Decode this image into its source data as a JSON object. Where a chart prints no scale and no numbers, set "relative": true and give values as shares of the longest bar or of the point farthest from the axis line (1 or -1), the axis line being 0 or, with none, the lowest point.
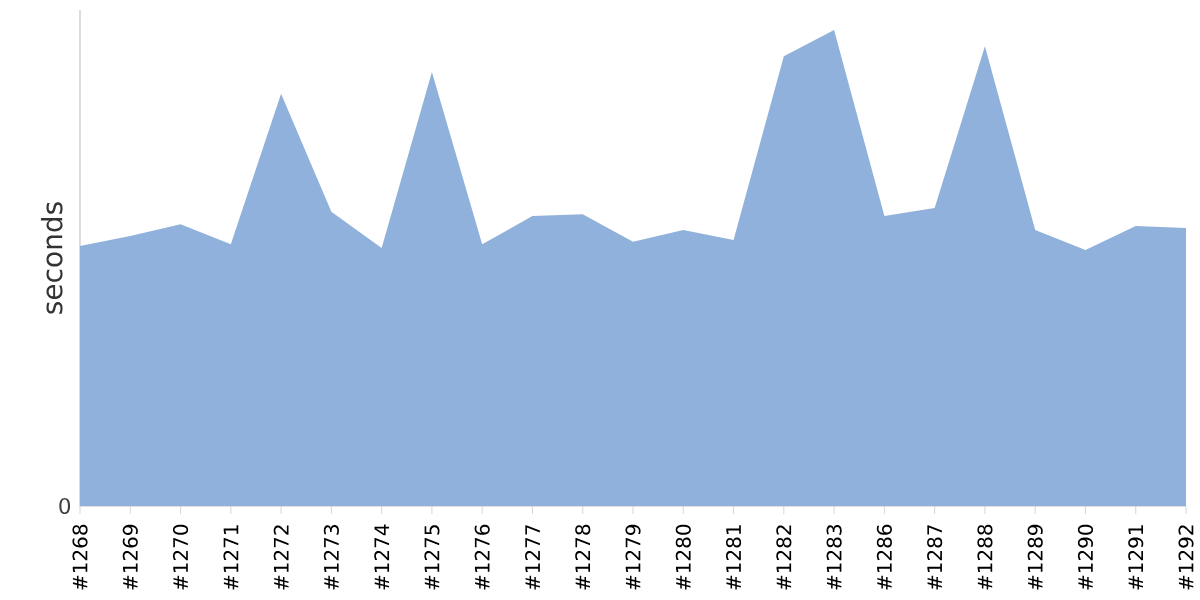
{
  "chart_data": {
    "type": "area",
    "ylabel": "seconds",
    "relative": true,
    "annotations": [
      "0"
    ],
    "categories": [
      "#1268",
      "#1269",
      "#1270",
      "#1271",
      "#1272",
      "#1273",
      "#1274",
      "#1275",
      "#1276",
      "#1277",
      "#1278",
      "#1279",
      "#1280",
      "#1281",
      "#1282",
      "#1283",
      "#1286",
      "#1287",
      "#1288",
      "#1289",
      "#1290",
      "#1291",
      "#1292"
    ],
    "series": [
      {
        "color": "#8fb1db",
        "values": [
          0.546,
          0.567,
          0.592,
          0.55,
          0.866,
          0.618,
          0.542,
          0.912,
          0.55,
          0.609,
          0.613,
          0.555,
          0.58,
          0.559,
          0.945,
          1,
          0.609,
          0.626,
          0.966,
          0.58,
          0.538,
          0.588,
          0.584
        ]
      }
    ],
    "grid": false
  }
}
